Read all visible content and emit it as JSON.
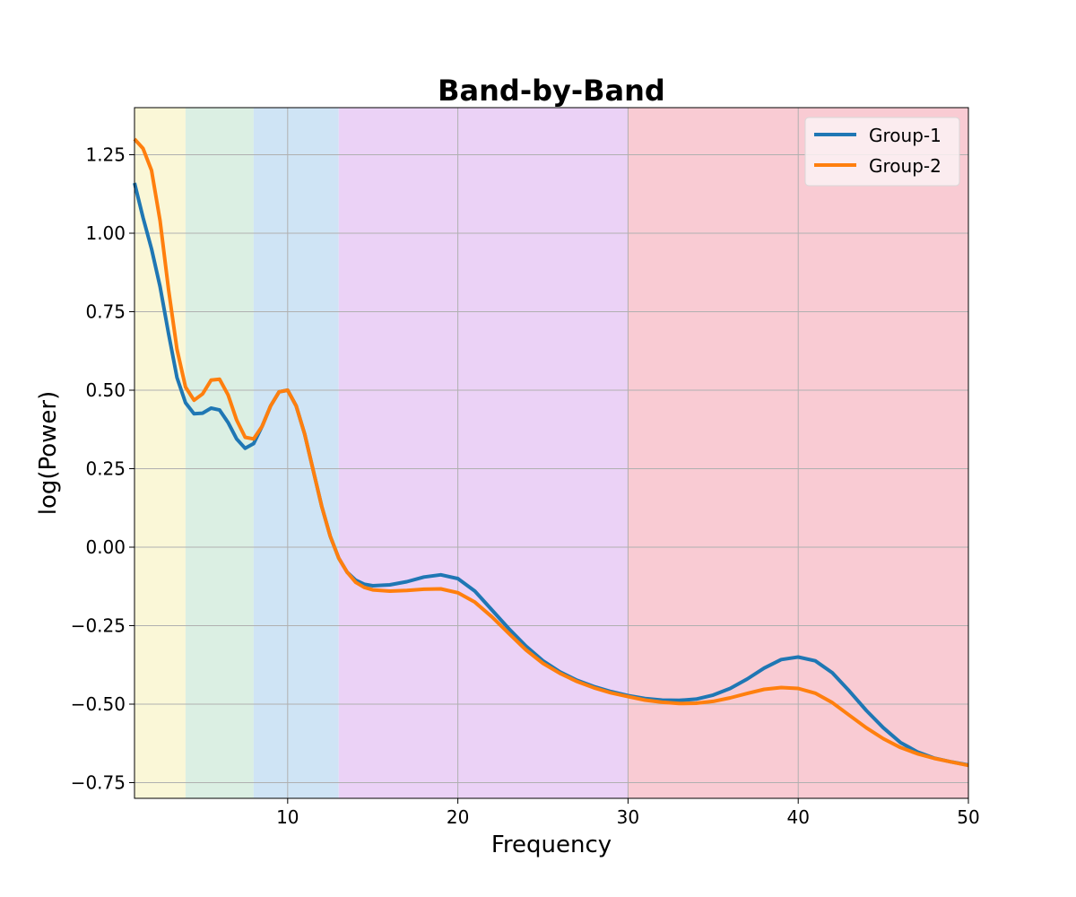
{
  "chart_data": {
    "type": "line",
    "title": "Band-by-Band",
    "xlabel": "Frequency",
    "ylabel": "log(Power)",
    "xlim": [
      1,
      50
    ],
    "ylim": [
      -0.8,
      1.4
    ],
    "xticks": [
      10,
      20,
      30,
      40,
      50
    ],
    "xtick_labels": [
      "10",
      "20",
      "30",
      "40",
      "50"
    ],
    "yticks": [
      -0.75,
      -0.5,
      -0.25,
      0.0,
      0.25,
      0.5,
      0.75,
      1.0,
      1.25
    ],
    "ytick_labels": [
      "−0.75",
      "−0.50",
      "−0.25",
      "0.00",
      "0.25",
      "0.50",
      "0.75",
      "1.00",
      "1.25"
    ],
    "grid": true,
    "legend_position": "top-right",
    "bands": [
      {
        "range": [
          1,
          4
        ],
        "color": "#faf7d7"
      },
      {
        "range": [
          4,
          8
        ],
        "color": "#dbefe3"
      },
      {
        "range": [
          8,
          13
        ],
        "color": "#cfe4f5"
      },
      {
        "range": [
          13,
          30
        ],
        "color": "#ebd2f6"
      },
      {
        "range": [
          30,
          50
        ],
        "color": "#f9cbd3"
      }
    ],
    "x": [
      1,
      1.5,
      2,
      2.5,
      3,
      3.5,
      4,
      4.5,
      5,
      5.5,
      6,
      6.5,
      7,
      7.5,
      8,
      8.5,
      9,
      9.5,
      10,
      10.5,
      11,
      11.5,
      12,
      12.5,
      13,
      13.5,
      14,
      14.5,
      15,
      16,
      17,
      18,
      19,
      20,
      21,
      22,
      23,
      24,
      25,
      26,
      27,
      28,
      29,
      30,
      31,
      32,
      33,
      34,
      35,
      36,
      37,
      38,
      39,
      40,
      41,
      42,
      43,
      44,
      45,
      46,
      47,
      48,
      49,
      50
    ],
    "series": [
      {
        "name": "Group-1",
        "color": "#1f77b4",
        "values": [
          1.16,
          1.05,
          0.95,
          0.83,
          0.68,
          0.54,
          0.46,
          0.425,
          0.427,
          0.443,
          0.437,
          0.397,
          0.345,
          0.315,
          0.33,
          0.385,
          0.45,
          0.495,
          0.5,
          0.45,
          0.36,
          0.245,
          0.13,
          0.035,
          -0.035,
          -0.08,
          -0.105,
          -0.118,
          -0.123,
          -0.12,
          -0.11,
          -0.095,
          -0.088,
          -0.1,
          -0.14,
          -0.2,
          -0.26,
          -0.315,
          -0.362,
          -0.397,
          -0.424,
          -0.444,
          -0.46,
          -0.473,
          -0.482,
          -0.487,
          -0.488,
          -0.484,
          -0.471,
          -0.45,
          -0.42,
          -0.385,
          -0.358,
          -0.35,
          -0.362,
          -0.4,
          -0.458,
          -0.52,
          -0.575,
          -0.622,
          -0.652,
          -0.672,
          -0.684,
          -0.694
        ]
      },
      {
        "name": "Group-2",
        "color": "#ff7f0e",
        "values": [
          1.3,
          1.27,
          1.2,
          1.04,
          0.82,
          0.63,
          0.51,
          0.468,
          0.488,
          0.532,
          0.535,
          0.485,
          0.405,
          0.35,
          0.345,
          0.385,
          0.45,
          0.495,
          0.5,
          0.45,
          0.36,
          0.245,
          0.13,
          0.035,
          -0.035,
          -0.08,
          -0.112,
          -0.128,
          -0.136,
          -0.14,
          -0.138,
          -0.134,
          -0.133,
          -0.145,
          -0.175,
          -0.222,
          -0.275,
          -0.327,
          -0.37,
          -0.402,
          -0.428,
          -0.448,
          -0.464,
          -0.476,
          -0.487,
          -0.494,
          -0.498,
          -0.497,
          -0.491,
          -0.48,
          -0.466,
          -0.453,
          -0.447,
          -0.45,
          -0.465,
          -0.495,
          -0.535,
          -0.575,
          -0.61,
          -0.638,
          -0.658,
          -0.673,
          -0.684,
          -0.695
        ]
      }
    ]
  }
}
